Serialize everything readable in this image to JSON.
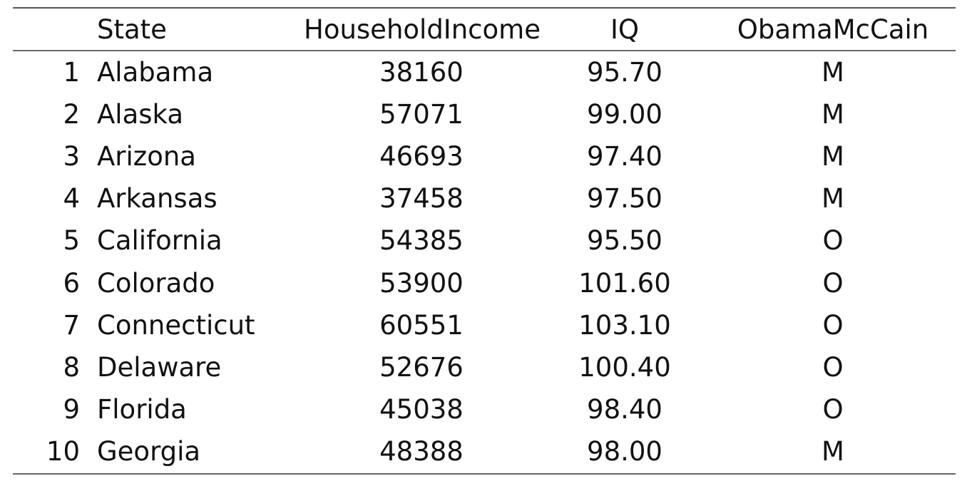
{
  "table": {
    "headers": [
      "",
      "State",
      "HouseholdIncome",
      "IQ",
      "ObamaMcCain"
    ],
    "rows": [
      [
        "1",
        "Alabama",
        "38160",
        "95.70",
        "M"
      ],
      [
        "2",
        "Alaska",
        "57071",
        "99.00",
        "M"
      ],
      [
        "3",
        "Arizona",
        "46693",
        "97.40",
        "M"
      ],
      [
        "4",
        "Arkansas",
        "37458",
        "97.50",
        "M"
      ],
      [
        "5",
        "California",
        "54385",
        "95.50",
        "O"
      ],
      [
        "6",
        "Colorado",
        "53900",
        "101.60",
        "O"
      ],
      [
        "7",
        "Connecticut",
        "60551",
        "103.10",
        "O"
      ],
      [
        "8",
        "Delaware",
        "52676",
        "100.40",
        "O"
      ],
      [
        "9",
        "Florida",
        "45038",
        "98.40",
        "O"
      ],
      [
        "10",
        "Georgia",
        "48388",
        "98.00",
        "M"
      ]
    ]
  }
}
